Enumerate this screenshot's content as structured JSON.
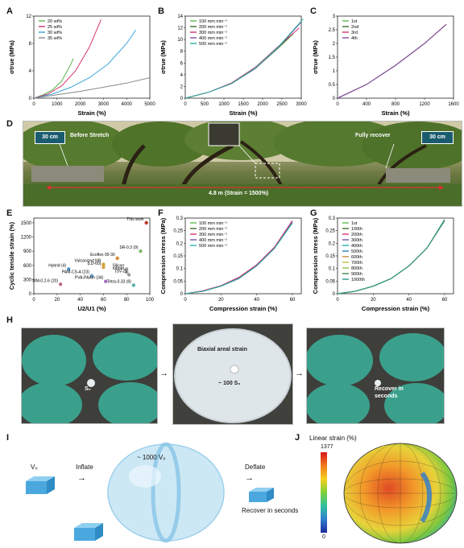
{
  "panels": {
    "A": "A",
    "B": "B",
    "C": "C",
    "D": "D",
    "E": "E",
    "F": "F",
    "G": "G",
    "H": "H",
    "I": "I",
    "J": "J"
  },
  "chart_data": [
    {
      "id": "A",
      "type": "line",
      "xlabel": "Strain (%)",
      "ylabel": "σtrue (MPa)",
      "xlim": [
        0,
        5000
      ],
      "ylim": [
        0,
        12
      ],
      "xticks": [
        0,
        1000,
        2000,
        3000,
        4000,
        5000
      ],
      "yticks": [
        0,
        4,
        8,
        12
      ],
      "series": [
        {
          "name": "20 wt%",
          "color": "#5fb84f",
          "x": [
            0,
            400,
            800,
            1200,
            1600,
            1700
          ],
          "y": [
            0,
            0.5,
            1.2,
            2.5,
            5.0,
            5.8
          ]
        },
        {
          "name": "25 wt%",
          "color": "#d8336e",
          "x": [
            0,
            600,
            1200,
            1800,
            2400,
            2900
          ],
          "y": [
            0,
            0.6,
            1.8,
            4.0,
            7.5,
            11.5
          ]
        },
        {
          "name": "30 wt%",
          "color": "#3aa6d9",
          "x": [
            0,
            800,
            1600,
            2400,
            3200,
            4000,
            4400
          ],
          "y": [
            0,
            0.6,
            1.6,
            3.0,
            5.0,
            8.0,
            10.0
          ]
        },
        {
          "name": "35 wt%",
          "color": "#888888",
          "x": [
            0,
            1000,
            2000,
            3000,
            4000,
            5000
          ],
          "y": [
            0,
            0.5,
            1.0,
            1.6,
            2.2,
            3.0
          ]
        }
      ]
    },
    {
      "id": "B",
      "type": "line",
      "xlabel": "Strain (%)",
      "ylabel": "σtrue (MPa)",
      "xlim": [
        0,
        3000
      ],
      "ylim": [
        0,
        14
      ],
      "xticks": [
        0,
        500,
        1000,
        1500,
        2000,
        2500,
        3000
      ],
      "yticks": [
        0,
        2,
        4,
        6,
        8,
        10,
        12,
        14
      ],
      "series": [
        {
          "name": "100 mm min⁻¹",
          "color": "#5fb84f",
          "x": [
            0,
            600,
            1200,
            1800,
            2400,
            2800
          ],
          "y": [
            0,
            1.0,
            2.5,
            5.0,
            8.5,
            11.0
          ]
        },
        {
          "name": "200 mm min⁻¹",
          "color": "#3f6e2a",
          "x": [
            0,
            600,
            1200,
            1800,
            2400,
            2700
          ],
          "y": [
            0,
            1.0,
            2.6,
            5.2,
            8.6,
            10.5
          ]
        },
        {
          "name": "300 mm min⁻¹",
          "color": "#d8336e",
          "x": [
            0,
            600,
            1200,
            1800,
            2400,
            2950
          ],
          "y": [
            0,
            1.0,
            2.6,
            5.2,
            8.8,
            12.0
          ]
        },
        {
          "name": "400 mm min⁻¹",
          "color": "#7c4fa8",
          "x": [
            0,
            600,
            1200,
            1800,
            2400,
            3000
          ],
          "y": [
            0,
            1.0,
            2.5,
            5.0,
            8.6,
            13.0
          ]
        },
        {
          "name": "500 mm min⁻¹",
          "color": "#2bb3a3",
          "x": [
            0,
            600,
            1200,
            1800,
            2400,
            3050
          ],
          "y": [
            0,
            1.0,
            2.5,
            5.1,
            8.7,
            13.5
          ]
        }
      ]
    },
    {
      "id": "C",
      "type": "line",
      "xlabel": "Strain (%)",
      "ylabel": "σtrue (MPa)",
      "xlim": [
        0,
        1600
      ],
      "ylim": [
        0,
        3.0
      ],
      "xticks": [
        0,
        400,
        800,
        1200,
        1600
      ],
      "yticks": [
        0,
        0.5,
        1.0,
        1.5,
        2.0,
        2.5,
        3.0
      ],
      "series": [
        {
          "name": "1st",
          "color": "#5fb84f",
          "x": [
            0,
            400,
            800,
            1200,
            1500
          ],
          "y": [
            0,
            0.5,
            1.2,
            2.0,
            2.7
          ]
        },
        {
          "name": "2nd",
          "color": "#3f6e2a",
          "x": [
            0,
            400,
            800,
            1200,
            1500
          ],
          "y": [
            0,
            0.5,
            1.2,
            2.0,
            2.7
          ]
        },
        {
          "name": "3rd",
          "color": "#d8336e",
          "x": [
            0,
            400,
            800,
            1200,
            1500
          ],
          "y": [
            0,
            0.5,
            1.2,
            2.0,
            2.7
          ]
        },
        {
          "name": "4th",
          "color": "#7c4fa8",
          "x": [
            0,
            400,
            800,
            1200,
            1500
          ],
          "y": [
            0,
            0.5,
            1.2,
            2.0,
            2.7
          ]
        }
      ]
    },
    {
      "id": "E",
      "type": "scatter",
      "xlabel": "U2/U1 (%)",
      "ylabel": "Cyclic tensile strain (%)",
      "xlim": [
        0,
        100
      ],
      "ylim": [
        0,
        1600
      ],
      "xticks": [
        0,
        20,
        40,
        60,
        80,
        100
      ],
      "yticks": [
        0,
        300,
        600,
        900,
        1200,
        1500
      ],
      "points": [
        {
          "label": "This work",
          "x": 97,
          "y": 1500,
          "color": "#c0392b"
        },
        {
          "label": "SR-0.3 (9)",
          "x": 92,
          "y": 900,
          "color": "#7fb86a"
        },
        {
          "label": "Ecoflex 00-30",
          "x": 72,
          "y": 750,
          "color": "#e08a3c"
        },
        {
          "label": "Vulcanized NR",
          "x": 60,
          "y": 620,
          "color": "#d4a23c"
        },
        {
          "label": "(LD-60)",
          "x": 60,
          "y": 560,
          "color": "#d4a23c"
        },
        {
          "label": "Silicon",
          "x": 80,
          "y": 520,
          "color": "#9a9a9a"
        },
        {
          "label": "rubber",
          "x": 80,
          "y": 460,
          "color": "#9a9a9a"
        },
        {
          "label": "(SV-2)",
          "x": 82,
          "y": 400,
          "color": "#9a9a9a"
        },
        {
          "label": "Hybrid (4)",
          "x": 30,
          "y": 520,
          "color": "#4a8fc7"
        },
        {
          "label": "PAM-CS-A (23)",
          "x": 50,
          "y": 380,
          "color": "#6aa0d0"
        },
        {
          "label": "PVA-PAAm (34)",
          "x": 62,
          "y": 260,
          "color": "#a06ac0"
        },
        {
          "label": "MM-0.2-6 (20)",
          "x": 23,
          "y": 200,
          "color": "#c06a8a"
        },
        {
          "label": "Tetra-0.33 (8)",
          "x": 86,
          "y": 180,
          "color": "#5ab0b0"
        }
      ]
    },
    {
      "id": "F",
      "type": "line",
      "xlabel": "Compression strain (%)",
      "ylabel": "Compression stress (MPa)",
      "xlim": [
        0,
        65
      ],
      "ylim": [
        0,
        0.3
      ],
      "xticks": [
        0,
        20,
        40,
        60
      ],
      "yticks": [
        0,
        0.05,
        0.1,
        0.15,
        0.2,
        0.25,
        0.3
      ],
      "series": [
        {
          "name": "100 mm min⁻¹",
          "color": "#5fb84f",
          "x": [
            0,
            10,
            20,
            30,
            40,
            50,
            60
          ],
          "y": [
            0,
            0.01,
            0.03,
            0.06,
            0.11,
            0.18,
            0.28
          ]
        },
        {
          "name": "200 mm min⁻¹",
          "color": "#3f6e2a",
          "x": [
            0,
            10,
            20,
            30,
            40,
            50,
            60
          ],
          "y": [
            0,
            0.01,
            0.03,
            0.06,
            0.11,
            0.18,
            0.285
          ]
        },
        {
          "name": "300 mm min⁻¹",
          "color": "#d8336e",
          "x": [
            0,
            10,
            20,
            30,
            40,
            50,
            60
          ],
          "y": [
            0,
            0.012,
            0.032,
            0.065,
            0.115,
            0.185,
            0.29
          ]
        },
        {
          "name": "400 mm min⁻¹",
          "color": "#7c4fa8",
          "x": [
            0,
            10,
            20,
            30,
            40,
            50,
            60
          ],
          "y": [
            0,
            0.011,
            0.031,
            0.062,
            0.112,
            0.182,
            0.285
          ]
        },
        {
          "name": "500 mm min⁻¹",
          "color": "#2bb3a3",
          "x": [
            0,
            10,
            20,
            30,
            40,
            50,
            60
          ],
          "y": [
            0,
            0.01,
            0.03,
            0.06,
            0.11,
            0.18,
            0.28
          ]
        }
      ]
    },
    {
      "id": "G",
      "type": "line",
      "xlabel": "Compression strain (%)",
      "ylabel": "Compression stress (MPa)",
      "xlim": [
        0,
        65
      ],
      "ylim": [
        0,
        0.3
      ],
      "xticks": [
        0,
        20,
        40,
        60
      ],
      "yticks": [
        0,
        0.05,
        0.1,
        0.15,
        0.2,
        0.25,
        0.3
      ],
      "series": [
        {
          "name": "1st",
          "color": "#5fb84f",
          "x": [
            0,
            10,
            20,
            30,
            40,
            50,
            60
          ],
          "y": [
            0,
            0.01,
            0.03,
            0.06,
            0.11,
            0.18,
            0.29
          ]
        },
        {
          "name": "100th",
          "color": "#3f6e2a",
          "x": [
            0,
            10,
            20,
            30,
            40,
            50,
            60
          ],
          "y": [
            0,
            0.01,
            0.03,
            0.06,
            0.11,
            0.18,
            0.29
          ]
        },
        {
          "name": "200th",
          "color": "#d8336e",
          "x": [
            0,
            10,
            20,
            30,
            40,
            50,
            60
          ],
          "y": [
            0,
            0.01,
            0.03,
            0.06,
            0.11,
            0.18,
            0.29
          ]
        },
        {
          "name": "300th",
          "color": "#7c4fa8",
          "x": [
            0,
            10,
            20,
            30,
            40,
            50,
            60
          ],
          "y": [
            0,
            0.01,
            0.03,
            0.06,
            0.11,
            0.18,
            0.29
          ]
        },
        {
          "name": "400th",
          "color": "#2bb3a3",
          "x": [
            0,
            10,
            20,
            30,
            40,
            50,
            60
          ],
          "y": [
            0,
            0.01,
            0.03,
            0.06,
            0.11,
            0.18,
            0.29
          ]
        },
        {
          "name": "500th",
          "color": "#2f7fc0",
          "x": [
            0,
            10,
            20,
            30,
            40,
            50,
            60
          ],
          "y": [
            0,
            0.01,
            0.03,
            0.06,
            0.11,
            0.18,
            0.29
          ]
        },
        {
          "name": "600th",
          "color": "#c08a3c",
          "x": [
            0,
            10,
            20,
            30,
            40,
            50,
            60
          ],
          "y": [
            0,
            0.01,
            0.03,
            0.06,
            0.11,
            0.18,
            0.29
          ]
        },
        {
          "name": "700th",
          "color": "#c0c03c",
          "x": [
            0,
            10,
            20,
            30,
            40,
            50,
            60
          ],
          "y": [
            0,
            0.01,
            0.03,
            0.06,
            0.11,
            0.18,
            0.29
          ]
        },
        {
          "name": "800th",
          "color": "#8ac03c",
          "x": [
            0,
            10,
            20,
            30,
            40,
            50,
            60
          ],
          "y": [
            0,
            0.01,
            0.03,
            0.06,
            0.11,
            0.18,
            0.29
          ]
        },
        {
          "name": "900th",
          "color": "#3c8a5c",
          "x": [
            0,
            10,
            20,
            30,
            40,
            50,
            60
          ],
          "y": [
            0,
            0.01,
            0.03,
            0.06,
            0.11,
            0.18,
            0.29
          ]
        },
        {
          "name": "1000th",
          "color": "#2a9a8a",
          "x": [
            0,
            10,
            20,
            30,
            40,
            50,
            60
          ],
          "y": [
            0,
            0.01,
            0.03,
            0.06,
            0.11,
            0.18,
            0.295
          ]
        }
      ]
    }
  ],
  "panelD": {
    "before": "Before Stretch",
    "after": "Fully recover",
    "scale_left": "30 cm",
    "scale_right": "30 cm",
    "span": "4.8 m (Strain = 1500%)"
  },
  "panelH": {
    "s0": "S₀",
    "areal_title": "Biaxial areal strain",
    "areal_value": "~ 100 S₀",
    "recover": "Recover in",
    "recover2": "seconds"
  },
  "panelI": {
    "v0": "V₀",
    "inflate": "Inflate",
    "volume": "~ 1000 V₀",
    "deflate": "Deflate",
    "recover": "Recover in seconds"
  },
  "panelJ": {
    "title": "Linear strain (%)",
    "max": "1377",
    "min": "0"
  }
}
